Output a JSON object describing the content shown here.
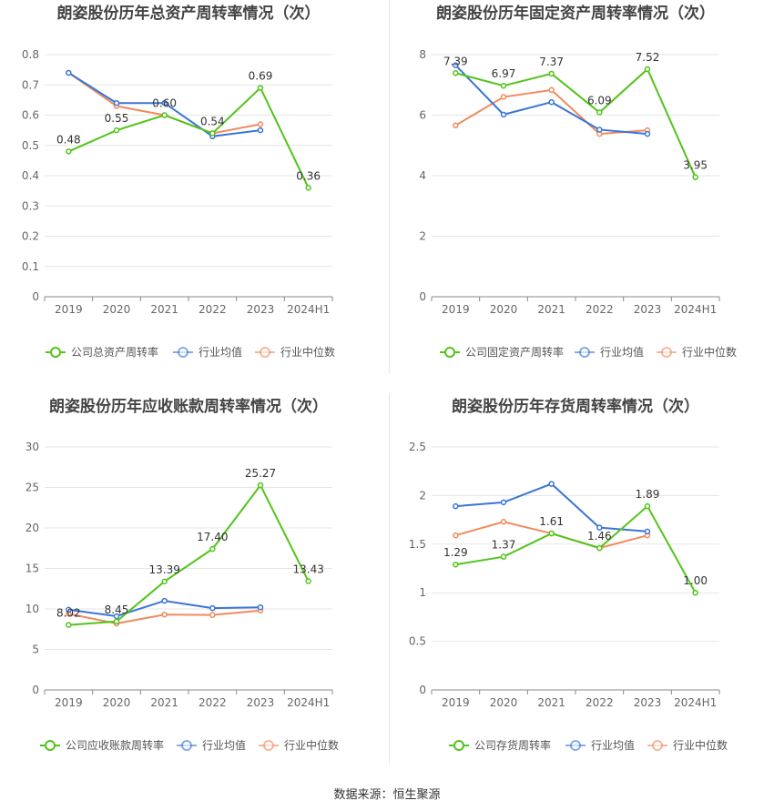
{
  "source_label": "数据来源：恒生聚源",
  "colors": {
    "company": "#52c41a",
    "avg": "#3a75d6",
    "median": "#f08a5d",
    "grid": "#e5e5e5",
    "axis": "#666666",
    "title": "#444444"
  },
  "chart_data": [
    {
      "type": "line",
      "title": "朗姿股份历年总资产周转率情况（次）",
      "categories": [
        "2019",
        "2020",
        "2021",
        "2022",
        "2023",
        "2024H1"
      ],
      "ylim": [
        0,
        0.8
      ],
      "yticks": [
        "0",
        "0.1",
        "0.2",
        "0.3",
        "0.4",
        "0.5",
        "0.6",
        "0.7",
        "0.8"
      ],
      "legend_position": "bottom",
      "series": [
        {
          "name": "公司总资产周转率",
          "values": [
            0.48,
            0.55,
            0.6,
            0.54,
            0.69,
            0.36
          ],
          "labels": [
            "0.48",
            "0.55",
            "0.60",
            "0.54",
            "0.69",
            "0.36"
          ]
        },
        {
          "name": "行业均值",
          "values": [
            0.74,
            0.64,
            0.64,
            0.53,
            0.55,
            null
          ]
        },
        {
          "name": "行业中位数",
          "values": [
            0.74,
            0.63,
            0.6,
            0.54,
            0.57,
            null
          ]
        }
      ]
    },
    {
      "type": "line",
      "title": "朗姿股份历年固定资产周转率情况（次）",
      "categories": [
        "2019",
        "2020",
        "2021",
        "2022",
        "2023",
        "2024H1"
      ],
      "ylim": [
        0,
        8
      ],
      "yticks": [
        "0",
        "2",
        "4",
        "6",
        "8"
      ],
      "legend_position": "bottom",
      "series": [
        {
          "name": "公司固定资产周转率",
          "values": [
            7.39,
            6.97,
            7.37,
            6.09,
            7.52,
            3.95
          ],
          "labels": [
            "7.39",
            "6.97",
            "7.37",
            "6.09",
            "7.52",
            "3.95"
          ]
        },
        {
          "name": "行业均值",
          "values": [
            7.65,
            6.02,
            6.43,
            5.52,
            5.38,
            null
          ]
        },
        {
          "name": "行业中位数",
          "values": [
            5.66,
            6.6,
            6.83,
            5.38,
            5.5,
            null
          ]
        }
      ]
    },
    {
      "type": "line",
      "title": "朗姿股份历年应收账款周转率情况（次）",
      "categories": [
        "2019",
        "2020",
        "2021",
        "2022",
        "2023",
        "2024H1"
      ],
      "ylim": [
        0,
        30
      ],
      "yticks": [
        "0",
        "5",
        "10",
        "15",
        "20",
        "25",
        "30"
      ],
      "legend_position": "bottom",
      "series": [
        {
          "name": "公司应收账款周转率",
          "values": [
            8.02,
            8.45,
            13.39,
            17.4,
            25.27,
            13.43
          ],
          "labels": [
            "8.02",
            "8.45",
            "13.39",
            "17.40",
            "25.27",
            "13.43"
          ]
        },
        {
          "name": "行业均值",
          "values": [
            9.9,
            9.1,
            11.0,
            10.1,
            10.2,
            null
          ]
        },
        {
          "name": "行业中位数",
          "values": [
            9.4,
            8.2,
            9.3,
            9.25,
            9.8,
            null
          ]
        }
      ]
    },
    {
      "type": "line",
      "title": "朗姿股份历年存货周转率情况（次）",
      "categories": [
        "2019",
        "2020",
        "2021",
        "2022",
        "2023",
        "2024H1"
      ],
      "ylim": [
        0,
        2.5
      ],
      "yticks": [
        "0",
        "0.5",
        "1",
        "1.5",
        "2",
        "2.5"
      ],
      "legend_position": "bottom",
      "series": [
        {
          "name": "公司存货周转率",
          "values": [
            1.29,
            1.37,
            1.61,
            1.46,
            1.89,
            1.0
          ],
          "labels": [
            "1.29",
            "1.37",
            "1.61",
            "1.46",
            "1.89",
            "1.00"
          ]
        },
        {
          "name": "行业均值",
          "values": [
            1.89,
            1.93,
            2.12,
            1.67,
            1.63,
            null
          ]
        },
        {
          "name": "行业中位数",
          "values": [
            1.59,
            1.73,
            1.61,
            1.46,
            1.59,
            null
          ]
        }
      ]
    }
  ]
}
